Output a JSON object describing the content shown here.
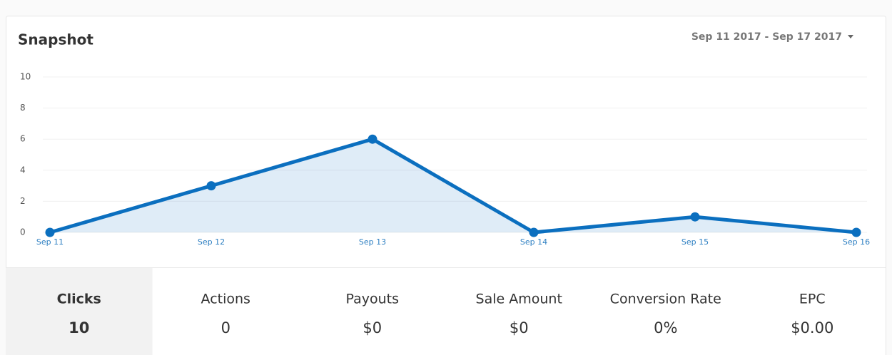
{
  "header": {
    "title": "Snapshot",
    "date_range": "Sep 11 2017 - Sep 17 2017"
  },
  "chart_data": {
    "type": "line",
    "categories": [
      "Sep 11",
      "Sep 12",
      "Sep 13",
      "Sep 14",
      "Sep 15",
      "Sep 16"
    ],
    "values": [
      0,
      3,
      6,
      0,
      1,
      0
    ],
    "color": "#0b6fbf",
    "area": true,
    "ylim": [
      0,
      10
    ],
    "yticks": [
      0,
      2,
      4,
      6,
      8,
      10
    ],
    "grid": true
  },
  "stats": [
    {
      "label": "Clicks",
      "value": "10",
      "active": true
    },
    {
      "label": "Actions",
      "value": "0",
      "active": false
    },
    {
      "label": "Payouts",
      "value": "$0",
      "active": false
    },
    {
      "label": "Sale Amount",
      "value": "$0",
      "active": false
    },
    {
      "label": "Conversion Rate",
      "value": "0%",
      "active": false
    },
    {
      "label": "EPC",
      "value": "$0.00",
      "active": false
    }
  ]
}
